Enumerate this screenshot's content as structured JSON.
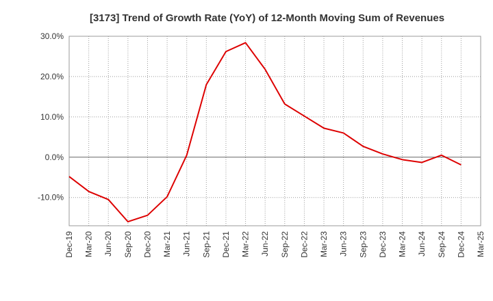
{
  "chart_data": {
    "type": "line",
    "title": "[3173]  Trend of Growth Rate (YoY) of 12-Month Moving Sum of Revenues",
    "xlabel": "",
    "ylabel": "",
    "y_unit": "%",
    "ylim": [
      -17,
      30
    ],
    "y_ticks": [
      30,
      20,
      10,
      0,
      -10
    ],
    "y_tick_labels": [
      "30.0%",
      "20.0%",
      "10.0%",
      "0.0%",
      "-10.0%"
    ],
    "x_tick_labels": [
      "Dec-19",
      "Mar-20",
      "Jun-20",
      "Sep-20",
      "Dec-20",
      "Mar-21",
      "Jun-21",
      "Sep-21",
      "Dec-21",
      "Mar-22",
      "Jun-22",
      "Sep-22",
      "Dec-22",
      "Mar-23",
      "Jun-23",
      "Sep-23",
      "Dec-23",
      "Mar-24",
      "Jun-24",
      "Sep-24",
      "Dec-24",
      "Mar-25"
    ],
    "grid": true,
    "series_color": "#dd0000",
    "series": [
      {
        "x": [
          "Dec-19",
          "Mar-20",
          "Jun-20",
          "Sep-20",
          "Dec-20",
          "Mar-21",
          "Jun-21",
          "Sep-21",
          "Dec-21",
          "Mar-22",
          "Jun-22",
          "Sep-22",
          "Dec-22",
          "Mar-23",
          "Jun-23",
          "Sep-23",
          "Dec-23",
          "Mar-24",
          "Jun-24",
          "Sep-24",
          "Dec-24"
        ],
        "values": [
          -4.8,
          -8.5,
          -10.5,
          -16.0,
          -14.4,
          -9.8,
          0.5,
          18.0,
          26.2,
          28.4,
          21.8,
          13.2,
          10.2,
          7.2,
          6.0,
          2.7,
          0.8,
          -0.6,
          -1.3,
          0.5,
          -1.9
        ]
      }
    ]
  }
}
